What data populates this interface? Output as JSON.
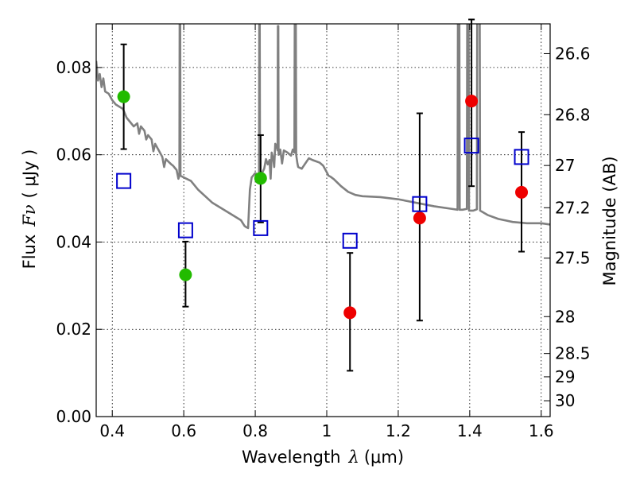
{
  "chart_data": {
    "type": "scatter",
    "xlabel_text": "Wavelength",
    "xlabel_symbol": "λ",
    "xlabel_unit": "(μm)",
    "ylabel_text": "Flux",
    "ylabel_symbol": "Fν",
    "ylabel_unit": "( μJy )",
    "y2label": "Magnitude (AB)",
    "xlim": [
      0.355,
      1.625
    ],
    "ylim": [
      0.0,
      0.09
    ],
    "grid": true,
    "x_ticks": [
      {
        "value": 0.4,
        "label": "0.4"
      },
      {
        "value": 0.6,
        "label": "0.6"
      },
      {
        "value": 0.8,
        "label": "0.8"
      },
      {
        "value": 1.0,
        "label": "1"
      },
      {
        "value": 1.2,
        "label": "1.2"
      },
      {
        "value": 1.4,
        "label": "1.4"
      },
      {
        "value": 1.6,
        "label": "1.6"
      }
    ],
    "y_ticks": [
      {
        "value": 0.0,
        "label": "0.00"
      },
      {
        "value": 0.02,
        "label": "0.02"
      },
      {
        "value": 0.04,
        "label": "0.04"
      },
      {
        "value": 0.06,
        "label": "0.06"
      },
      {
        "value": 0.08,
        "label": "0.08"
      }
    ],
    "mag_ticks": [
      {
        "mag": 26.6,
        "label": "26.6"
      },
      {
        "mag": 26.8,
        "label": "26.8"
      },
      {
        "mag": 27.0,
        "label": "27"
      },
      {
        "mag": 27.2,
        "label": "27.2"
      },
      {
        "mag": 27.5,
        "label": "27.5"
      },
      {
        "mag": 28.0,
        "label": "28"
      },
      {
        "mag": 28.5,
        "label": "28.5"
      },
      {
        "mag": 29.0,
        "label": "29"
      },
      {
        "mag": 30.0,
        "label": "30"
      }
    ],
    "series": [
      {
        "name": "model-spectrum",
        "kind": "line",
        "color": "#808080",
        "points": [
          [
            0.355,
            0.0815
          ],
          [
            0.36,
            0.077
          ],
          [
            0.365,
            0.0785
          ],
          [
            0.37,
            0.0755
          ],
          [
            0.375,
            0.0775
          ],
          [
            0.38,
            0.0745
          ],
          [
            0.39,
            0.074
          ],
          [
            0.4,
            0.0725
          ],
          [
            0.41,
            0.0715
          ],
          [
            0.42,
            0.071
          ],
          [
            0.43,
            0.0705
          ],
          [
            0.44,
            0.0685
          ],
          [
            0.45,
            0.0675
          ],
          [
            0.46,
            0.0665
          ],
          [
            0.47,
            0.0672
          ],
          [
            0.475,
            0.0648
          ],
          [
            0.48,
            0.0665
          ],
          [
            0.49,
            0.0655
          ],
          [
            0.495,
            0.0635
          ],
          [
            0.5,
            0.0645
          ],
          [
            0.51,
            0.0635
          ],
          [
            0.515,
            0.0608
          ],
          [
            0.52,
            0.0625
          ],
          [
            0.53,
            0.061
          ],
          [
            0.54,
            0.0595
          ],
          [
            0.545,
            0.0572
          ],
          [
            0.55,
            0.059
          ],
          [
            0.56,
            0.0582
          ],
          [
            0.565,
            0.0578
          ],
          [
            0.57,
            0.0575
          ],
          [
            0.58,
            0.0565
          ],
          [
            0.585,
            0.0545
          ],
          [
            0.5878,
            0.0552
          ],
          [
            0.5885,
            0.091
          ],
          [
            0.59,
            0.091
          ],
          [
            0.5908,
            0.0552
          ],
          [
            0.6,
            0.0548
          ],
          [
            0.62,
            0.054
          ],
          [
            0.64,
            0.052
          ],
          [
            0.66,
            0.0505
          ],
          [
            0.68,
            0.049
          ],
          [
            0.7,
            0.048
          ],
          [
            0.72,
            0.047
          ],
          [
            0.74,
            0.046
          ],
          [
            0.76,
            0.045
          ],
          [
            0.77,
            0.0437
          ],
          [
            0.775,
            0.0434
          ],
          [
            0.78,
            0.0432
          ],
          [
            0.785,
            0.052
          ],
          [
            0.79,
            0.0548
          ],
          [
            0.8,
            0.0558
          ],
          [
            0.8105,
            0.0552
          ],
          [
            0.8113,
            0.091
          ],
          [
            0.8125,
            0.091
          ],
          [
            0.8133,
            0.056
          ],
          [
            0.82,
            0.056
          ],
          [
            0.825,
            0.0568
          ],
          [
            0.83,
            0.059
          ],
          [
            0.835,
            0.0578
          ],
          [
            0.84,
            0.0588
          ],
          [
            0.843,
            0.0545
          ],
          [
            0.846,
            0.0605
          ],
          [
            0.85,
            0.0592
          ],
          [
            0.853,
            0.0572
          ],
          [
            0.856,
            0.0625
          ],
          [
            0.86,
            0.062
          ],
          [
            0.8625,
            0.061
          ],
          [
            0.8633,
            0.0895
          ],
          [
            0.8645,
            0.0895
          ],
          [
            0.8653,
            0.06
          ],
          [
            0.87,
            0.0612
          ],
          [
            0.875,
            0.058
          ],
          [
            0.88,
            0.061
          ],
          [
            0.89,
            0.0605
          ],
          [
            0.9,
            0.0598
          ],
          [
            0.905,
            0.0612
          ],
          [
            0.9095,
            0.0605
          ],
          [
            0.9105,
            0.091
          ],
          [
            0.9135,
            0.091
          ],
          [
            0.9145,
            0.06
          ],
          [
            0.918,
            0.058
          ],
          [
            0.92,
            0.0572
          ],
          [
            0.93,
            0.0568
          ],
          [
            0.94,
            0.058
          ],
          [
            0.95,
            0.0592
          ],
          [
            0.96,
            0.0588
          ],
          [
            0.97,
            0.0585
          ],
          [
            0.98,
            0.0582
          ],
          [
            0.99,
            0.0575
          ],
          [
            1.0,
            0.056
          ],
          [
            1.005,
            0.0552
          ],
          [
            1.01,
            0.055
          ],
          [
            1.02,
            0.0544
          ],
          [
            1.04,
            0.0528
          ],
          [
            1.06,
            0.0515
          ],
          [
            1.08,
            0.0508
          ],
          [
            1.1,
            0.0505
          ],
          [
            1.15,
            0.0503
          ],
          [
            1.2,
            0.0498
          ],
          [
            1.25,
            0.049
          ],
          [
            1.3,
            0.0482
          ],
          [
            1.35,
            0.0476
          ],
          [
            1.366,
            0.0474
          ],
          [
            1.367,
            0.091
          ],
          [
            1.371,
            0.091
          ],
          [
            1.372,
            0.0474
          ],
          [
            1.38,
            0.0474
          ],
          [
            1.392,
            0.0476
          ],
          [
            1.393,
            0.091
          ],
          [
            1.397,
            0.091
          ],
          [
            1.398,
            0.0472
          ],
          [
            1.41,
            0.0472
          ],
          [
            1.42,
            0.0475
          ],
          [
            1.421,
            0.091
          ],
          [
            1.428,
            0.091
          ],
          [
            1.429,
            0.0472
          ],
          [
            1.45,
            0.0462
          ],
          [
            1.48,
            0.0453
          ],
          [
            1.52,
            0.0446
          ],
          [
            1.56,
            0.0443
          ],
          [
            1.6,
            0.0443
          ],
          [
            1.625,
            0.044
          ]
        ]
      },
      {
        "name": "green-observations",
        "kind": "points",
        "color": "#22bb00",
        "points": [
          {
            "x": 0.432,
            "y": 0.0733,
            "ylow": 0.0613,
            "yhigh": 0.0853
          },
          {
            "x": 0.605,
            "y": 0.0325,
            "ylow": 0.0252,
            "yhigh": 0.0401
          },
          {
            "x": 0.815,
            "y": 0.0546,
            "ylow": 0.0445,
            "yhigh": 0.0645
          }
        ]
      },
      {
        "name": "red-observations",
        "kind": "points",
        "color": "#ee0000",
        "points": [
          {
            "x": 1.065,
            "y": 0.0238,
            "ylow": 0.0105,
            "yhigh": 0.0375
          },
          {
            "x": 1.26,
            "y": 0.0455,
            "ylow": 0.022,
            "yhigh": 0.0695
          },
          {
            "x": 1.405,
            "y": 0.0723,
            "ylow": 0.0528,
            "yhigh": 0.091
          },
          {
            "x": 1.545,
            "y": 0.0514,
            "ylow": 0.0378,
            "yhigh": 0.0652
          }
        ]
      },
      {
        "name": "model-photometry",
        "kind": "open-squares",
        "color": "#0000cc",
        "points": [
          {
            "x": 0.432,
            "y": 0.054
          },
          {
            "x": 0.605,
            "y": 0.0427
          },
          {
            "x": 0.815,
            "y": 0.0432
          },
          {
            "x": 1.065,
            "y": 0.0403
          },
          {
            "x": 1.26,
            "y": 0.0487
          },
          {
            "x": 1.405,
            "y": 0.0621
          },
          {
            "x": 1.545,
            "y": 0.0595
          }
        ]
      }
    ]
  }
}
